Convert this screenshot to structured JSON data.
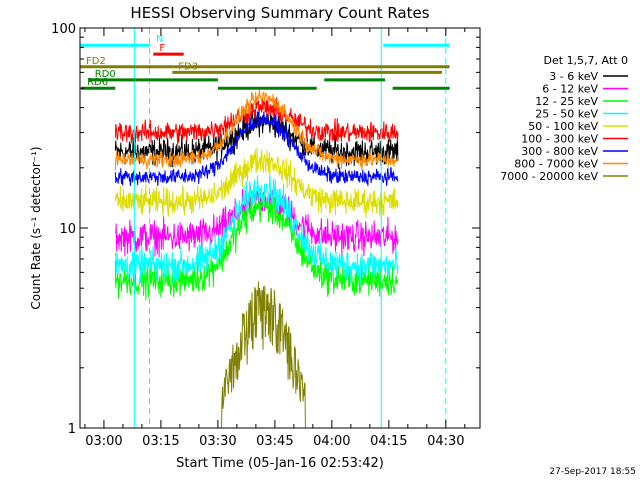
{
  "chart_data": {
    "type": "line",
    "title": "HESSI Observing Summary Count Rates",
    "xlabel": "Start Time (05-Jan-16 02:53:42)",
    "ylabel": "Count Rate (s⁻¹ detector⁻¹)",
    "yscale": "log",
    "ylim": [
      1,
      100
    ],
    "xlim_minutes": [
      -6.3,
      99
    ],
    "y_ticks": [
      {
        "v": 1,
        "label": "1"
      },
      {
        "v": 10,
        "label": "10"
      },
      {
        "v": 100,
        "label": "100"
      }
    ],
    "x_ticks": [
      {
        "m": 0,
        "label": "03:00"
      },
      {
        "m": 15,
        "label": "03:15"
      },
      {
        "m": 30,
        "label": "03:30"
      },
      {
        "m": 45,
        "label": "03:45"
      },
      {
        "m": 60,
        "label": "04:00"
      },
      {
        "m": 75,
        "label": "04:15"
      },
      {
        "m": 90,
        "label": "04:30"
      }
    ],
    "legend_title": "Det 1,5,7, Att 0",
    "series": [
      {
        "name": "3 - 6 keV",
        "color": "#000000",
        "base": 24,
        "peak": 34,
        "noise": 0.1
      },
      {
        "name": "6 - 12 keV",
        "color": "#ff00ff",
        "base": 9,
        "peak": 14,
        "noise": 0.12
      },
      {
        "name": "12 - 25 keV",
        "color": "#00ff00",
        "base": 5.5,
        "peak": 13,
        "noise": 0.12
      },
      {
        "name": "25 - 50 keV",
        "color": "#00ffff",
        "base": 6.5,
        "peak": 16,
        "noise": 0.12
      },
      {
        "name": "50 - 100 keV",
        "color": "#dddd00",
        "base": 13.5,
        "peak": 22,
        "noise": 0.1
      },
      {
        "name": "100 - 300 keV",
        "color": "#ff0000",
        "base": 30,
        "peak": 40,
        "noise": 0.08
      },
      {
        "name": "300 - 800 keV",
        "color": "#0000ff",
        "base": 18,
        "peak": 35,
        "noise": 0.06
      },
      {
        "name": "800 - 7000 keV",
        "color": "#ff8800",
        "base": 22,
        "peak": 45,
        "noise": 0.06
      },
      {
        "name": "7000 - 20000 keV",
        "color": "#808000",
        "base": 1,
        "peak": 4.5,
        "noise": 0.35
      }
    ],
    "data_start_minute": 3.0,
    "data_end_minute": 77.5,
    "peak_minute": 42,
    "night_bounds_minutes": [
      8,
      73
    ],
    "saa_bounds_minutes": [
      12,
      90
    ],
    "attenuator_flags": [
      {
        "label": "N",
        "color": "#00ffff",
        "y": 82,
        "segments": [
          [
            -6.3,
            12
          ],
          [
            73.5,
            91
          ]
        ]
      },
      {
        "label": "F",
        "color": "#ff0000",
        "y": 74,
        "segments": [
          [
            13,
            21
          ]
        ]
      },
      {
        "label": "FD2",
        "color": "#808000",
        "y": 64,
        "segments": [
          [
            -6.3,
            91
          ]
        ]
      },
      {
        "label": "FD3",
        "color": "#808000",
        "y": 60,
        "segments": [
          [
            18,
            89
          ]
        ]
      },
      {
        "label": "RD0",
        "color": "#008000",
        "y": 55,
        "segments": [
          [
            -4,
            30
          ],
          [
            58,
            74
          ]
        ]
      },
      {
        "label": "RD6",
        "color": "#008000",
        "y": 50,
        "segments": [
          [
            -6,
            3
          ],
          [
            30,
            56
          ],
          [
            76,
            91
          ]
        ]
      }
    ],
    "footer_date": "27-Sep-2017 18:55"
  }
}
